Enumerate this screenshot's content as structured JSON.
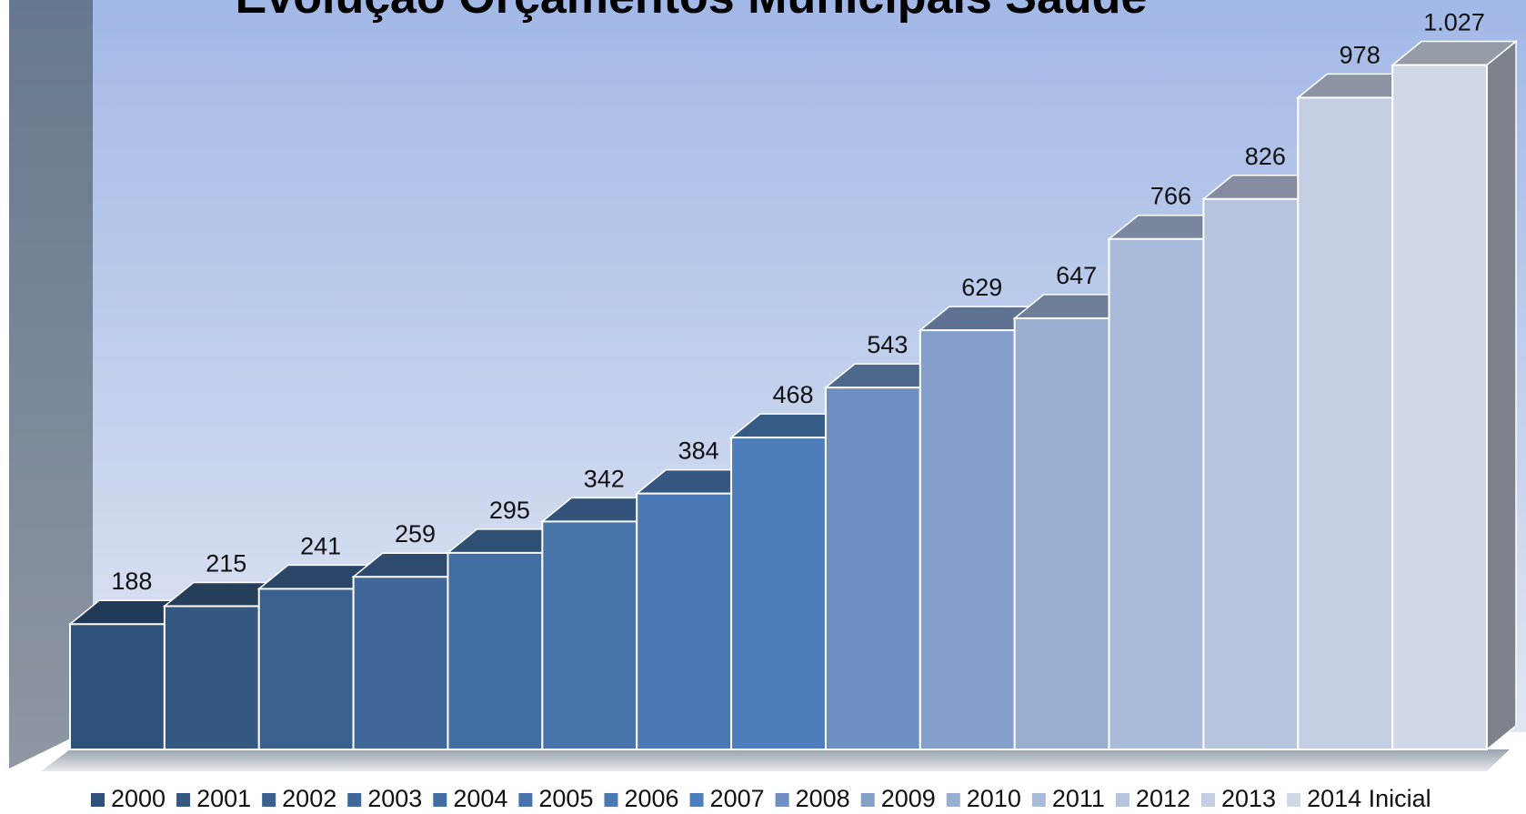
{
  "chart_data": {
    "type": "bar3d",
    "title": "Evolução Orçamentos Municipais Saúde",
    "ylim": [
      0,
      1100
    ],
    "series": [
      {
        "name": "2000",
        "color": "#2e5179",
        "values": [
          188
        ]
      },
      {
        "name": "2001",
        "color": "#34587f",
        "values": [
          215
        ]
      },
      {
        "name": "2002",
        "color": "#3a6090",
        "values": [
          241
        ]
      },
      {
        "name": "2003",
        "color": "#40679a",
        "values": [
          259
        ]
      },
      {
        "name": "2004",
        "color": "#436ea3",
        "values": [
          295
        ]
      },
      {
        "name": "2005",
        "color": "#4873ab",
        "values": [
          342
        ]
      },
      {
        "name": "2006",
        "color": "#4a79b5",
        "values": [
          384
        ]
      },
      {
        "name": "2007",
        "color": "#4d7ebb",
        "values": [
          468
        ]
      },
      {
        "name": "2008",
        "color": "#6d8fc2",
        "values": [
          543
        ]
      },
      {
        "name": "2009",
        "color": "#849fca",
        "values": [
          629
        ]
      },
      {
        "name": "2010",
        "color": "#99afd2",
        "values": [
          647
        ]
      },
      {
        "name": "2011",
        "color": "#a9badb",
        "values": [
          766
        ]
      },
      {
        "name": "2012",
        "color": "#b6c4dd",
        "values": [
          826
        ]
      },
      {
        "name": "2013",
        "color": "#c3cde3",
        "values": [
          978
        ]
      },
      {
        "name": "2014 Inicial",
        "color": "#d0d8e8",
        "values": [
          1027
        ],
        "value_labels": [
          "1.027"
        ]
      }
    ]
  }
}
